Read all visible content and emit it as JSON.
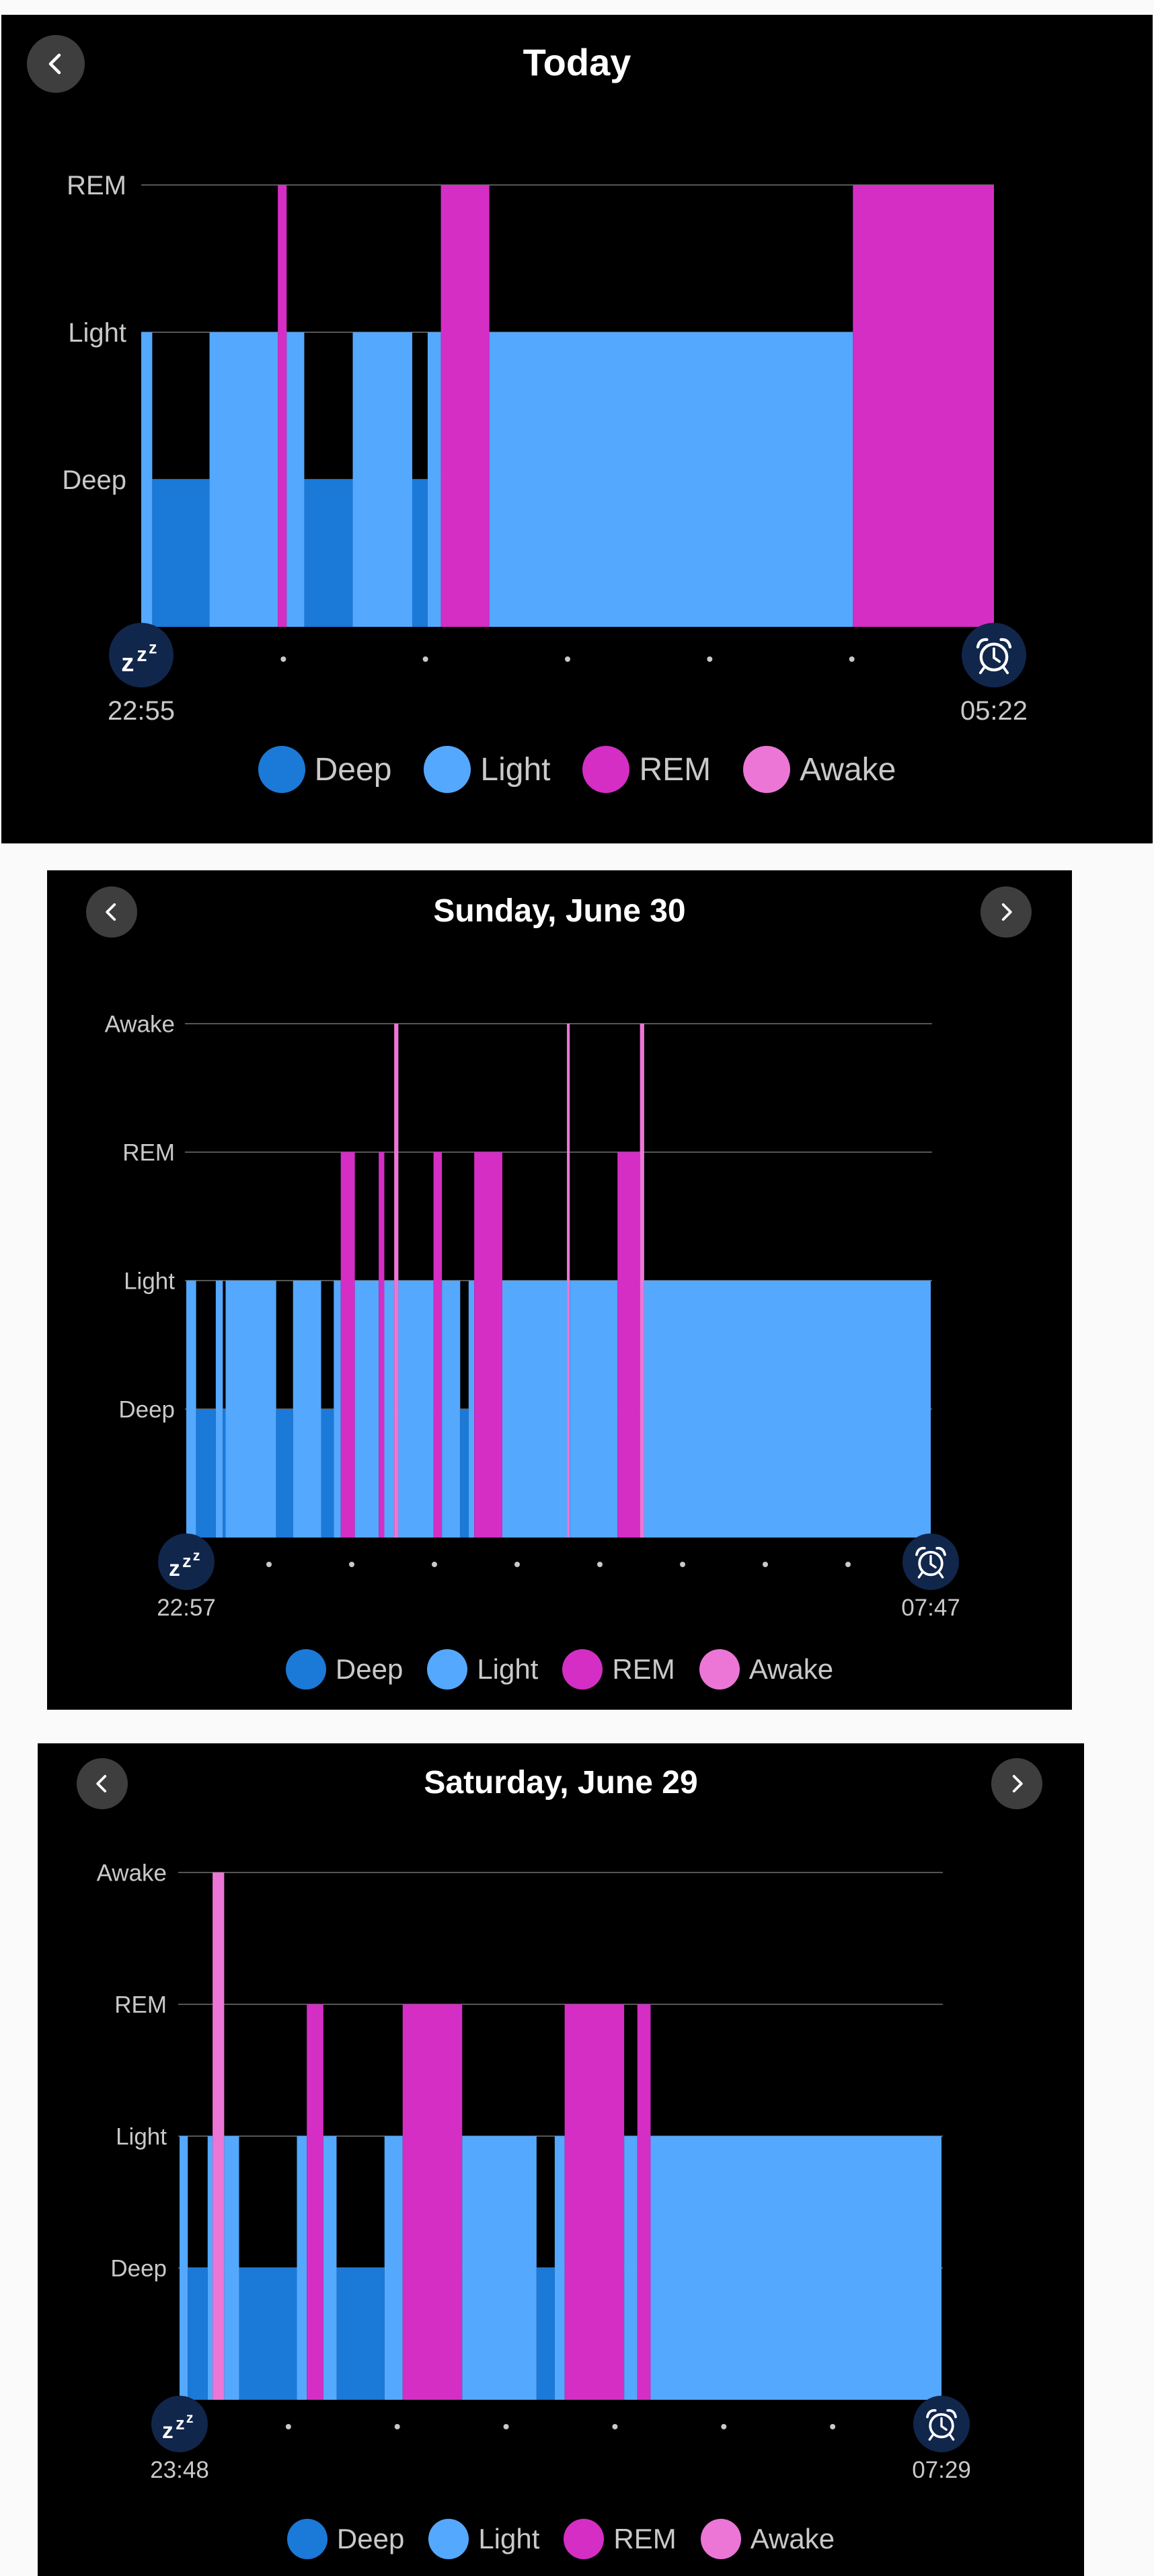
{
  "colors": {
    "Deep": "#1b79d8",
    "Light": "#54a8fd",
    "REM": "#d42ec5",
    "Awake": "#ec76d6",
    "grid": "#555555",
    "card_bg": "#000000",
    "nav_bg": "#3e3e3e"
  },
  "legend": [
    "Deep",
    "Light",
    "REM",
    "Awake"
  ],
  "cards": [
    {
      "title": "Today",
      "has_prev": true,
      "has_next": false,
      "start_time": "22:55",
      "end_time": "05:22",
      "start_icon": "sleep-zzz-icon",
      "end_icon": "alarm-clock-icon"
    },
    {
      "title": "Sunday, June 30",
      "has_prev": true,
      "has_next": true,
      "start_time": "22:57",
      "end_time": "07:47",
      "start_icon": "sleep-zzz-icon",
      "end_icon": "alarm-clock-icon"
    },
    {
      "title": "Saturday, June 29",
      "has_prev": true,
      "has_next": true,
      "start_time": "23:48",
      "end_time": "07:29",
      "start_icon": "sleep-zzz-icon",
      "end_icon": "alarm-clock-icon"
    }
  ],
  "chart_data": [
    {
      "type": "area",
      "title": "Today",
      "y_levels": [
        "Deep",
        "Light",
        "REM"
      ],
      "x_range": [
        "22:55",
        "05:22"
      ],
      "segments": [
        {
          "stage": "Light",
          "start": "22:55",
          "end": "23:00"
        },
        {
          "stage": "Deep",
          "start": "23:00",
          "end": "23:26"
        },
        {
          "stage": "Light",
          "start": "23:26",
          "end": "23:57"
        },
        {
          "stage": "REM",
          "start": "23:57",
          "end": "00:01"
        },
        {
          "stage": "Light",
          "start": "00:01",
          "end": "00:09"
        },
        {
          "stage": "Deep",
          "start": "00:09",
          "end": "00:31"
        },
        {
          "stage": "Light",
          "start": "00:31",
          "end": "00:58"
        },
        {
          "stage": "Deep",
          "start": "00:58",
          "end": "01:05"
        },
        {
          "stage": "Light",
          "start": "01:05",
          "end": "01:11"
        },
        {
          "stage": "REM",
          "start": "01:11",
          "end": "01:33"
        },
        {
          "stage": "Light",
          "start": "01:33",
          "end": "04:18"
        },
        {
          "stage": "REM",
          "start": "04:18",
          "end": "05:22"
        }
      ]
    },
    {
      "type": "area",
      "title": "Sunday, June 30",
      "y_levels": [
        "Deep",
        "Light",
        "REM",
        "Awake"
      ],
      "x_range": [
        "22:57",
        "07:47"
      ],
      "segments": [
        {
          "stage": "Light",
          "start": "22:57",
          "end": "23:04"
        },
        {
          "stage": "Deep",
          "start": "23:04",
          "end": "23:18"
        },
        {
          "stage": "Light",
          "start": "23:18",
          "end": "23:23"
        },
        {
          "stage": "Deep",
          "start": "23:23",
          "end": "23:25"
        },
        {
          "stage": "Light",
          "start": "23:25",
          "end": "00:01"
        },
        {
          "stage": "Deep",
          "start": "00:01",
          "end": "00:13"
        },
        {
          "stage": "Light",
          "start": "00:13",
          "end": "00:33"
        },
        {
          "stage": "Deep",
          "start": "00:33",
          "end": "00:42"
        },
        {
          "stage": "Light",
          "start": "00:42",
          "end": "00:47"
        },
        {
          "stage": "REM",
          "start": "00:47",
          "end": "00:57"
        },
        {
          "stage": "Light",
          "start": "00:57",
          "end": "01:14"
        },
        {
          "stage": "REM",
          "start": "01:14",
          "end": "01:18"
        },
        {
          "stage": "Light",
          "start": "01:18",
          "end": "01:25"
        },
        {
          "stage": "Awake",
          "start": "01:25",
          "end": "01:28"
        },
        {
          "stage": "Light",
          "start": "01:28",
          "end": "01:53"
        },
        {
          "stage": "REM",
          "start": "01:53",
          "end": "01:59"
        },
        {
          "stage": "Light",
          "start": "01:59",
          "end": "02:12"
        },
        {
          "stage": "Deep",
          "start": "02:12",
          "end": "02:18"
        },
        {
          "stage": "Light",
          "start": "02:18",
          "end": "02:22"
        },
        {
          "stage": "REM",
          "start": "02:22",
          "end": "02:42"
        },
        {
          "stage": "Light",
          "start": "02:42",
          "end": "03:28"
        },
        {
          "stage": "Awake",
          "start": "03:28",
          "end": "03:30"
        },
        {
          "stage": "Light",
          "start": "03:30",
          "end": "04:04"
        },
        {
          "stage": "REM",
          "start": "04:04",
          "end": "04:20"
        },
        {
          "stage": "Awake",
          "start": "04:20",
          "end": "04:23"
        },
        {
          "stage": "Light",
          "start": "04:23",
          "end": "07:47"
        }
      ]
    },
    {
      "type": "area",
      "title": "Saturday, June 29",
      "y_levels": [
        "Deep",
        "Light",
        "REM",
        "Awake"
      ],
      "x_range": [
        "23:48",
        "07:29"
      ],
      "segments": [
        {
          "stage": "Light",
          "start": "23:48",
          "end": "23:53"
        },
        {
          "stage": "Deep",
          "start": "23:53",
          "end": "24:05"
        },
        {
          "stage": "Light",
          "start": "24:05",
          "end": "00:08"
        },
        {
          "stage": "Awake",
          "start": "00:08",
          "end": "00:15"
        },
        {
          "stage": "Light",
          "start": "00:15",
          "end": "00:24"
        },
        {
          "stage": "Deep",
          "start": "00:24",
          "end": "00:59"
        },
        {
          "stage": "Light",
          "start": "00:59",
          "end": "01:05"
        },
        {
          "stage": "REM",
          "start": "01:05",
          "end": "01:15"
        },
        {
          "stage": "Light",
          "start": "01:15",
          "end": "01:23"
        },
        {
          "stage": "Deep",
          "start": "01:23",
          "end": "01:52"
        },
        {
          "stage": "Light",
          "start": "01:52",
          "end": "02:03"
        },
        {
          "stage": "REM",
          "start": "02:03",
          "end": "02:39"
        },
        {
          "stage": "Light",
          "start": "02:39",
          "end": "03:24"
        },
        {
          "stage": "Deep",
          "start": "03:24",
          "end": "03:35"
        },
        {
          "stage": "Light",
          "start": "03:35",
          "end": "03:41"
        },
        {
          "stage": "REM",
          "start": "03:41",
          "end": "04:17"
        },
        {
          "stage": "Light",
          "start": "04:17",
          "end": "04:25"
        },
        {
          "stage": "REM",
          "start": "04:25",
          "end": "04:33"
        },
        {
          "stage": "Light",
          "start": "04:33",
          "end": "07:29"
        }
      ]
    }
  ]
}
